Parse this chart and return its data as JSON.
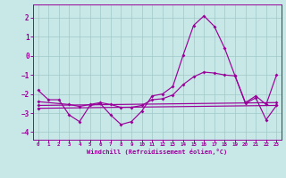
{
  "background_color": "#c8e8e8",
  "grid_color": "#a0c8c8",
  "line_color": "#990099",
  "xlim_min": -0.5,
  "xlim_max": 23.5,
  "ylim_min": -4.4,
  "ylim_max": 2.7,
  "yticks": [
    -4,
    -3,
    -2,
    -1,
    0,
    1,
    2
  ],
  "xticks": [
    0,
    1,
    2,
    3,
    4,
    5,
    6,
    7,
    8,
    9,
    10,
    11,
    12,
    13,
    14,
    15,
    16,
    17,
    18,
    19,
    20,
    21,
    22,
    23
  ],
  "xlabel": "Windchill (Refroidissement éolien,°C)",
  "line_main": [
    [
      0,
      -1.8
    ],
    [
      1,
      -2.3
    ],
    [
      2,
      -2.3
    ],
    [
      3,
      -3.1
    ],
    [
      4,
      -3.45
    ],
    [
      5,
      -2.6
    ],
    [
      6,
      -2.5
    ],
    [
      7,
      -3.1
    ],
    [
      8,
      -3.6
    ],
    [
      9,
      -3.45
    ],
    [
      10,
      -2.9
    ],
    [
      11,
      -2.1
    ],
    [
      12,
      -2.0
    ],
    [
      13,
      -1.6
    ],
    [
      14,
      0.05
    ],
    [
      15,
      1.6
    ],
    [
      16,
      2.1
    ],
    [
      17,
      1.55
    ],
    [
      18,
      0.4
    ],
    [
      19,
      -1.05
    ],
    [
      20,
      -2.5
    ],
    [
      21,
      -2.2
    ],
    [
      22,
      -3.35
    ],
    [
      23,
      -2.6
    ]
  ],
  "line_trend1": [
    [
      0,
      -2.4
    ],
    [
      3,
      -2.55
    ],
    [
      4,
      -2.65
    ],
    [
      5,
      -2.55
    ],
    [
      6,
      -2.45
    ],
    [
      7,
      -2.55
    ],
    [
      8,
      -2.7
    ],
    [
      9,
      -2.7
    ],
    [
      10,
      -2.6
    ],
    [
      11,
      -2.3
    ],
    [
      12,
      -2.25
    ],
    [
      13,
      -2.05
    ],
    [
      14,
      -1.5
    ],
    [
      15,
      -1.1
    ],
    [
      16,
      -0.85
    ],
    [
      17,
      -0.9
    ],
    [
      18,
      -1.0
    ],
    [
      19,
      -1.05
    ],
    [
      20,
      -2.45
    ],
    [
      21,
      -2.1
    ],
    [
      22,
      -2.55
    ],
    [
      23,
      -1.0
    ]
  ],
  "line_trend2": [
    [
      0,
      -2.6
    ],
    [
      23,
      -2.45
    ]
  ],
  "line_trend3": [
    [
      0,
      -2.75
    ],
    [
      23,
      -2.6
    ]
  ]
}
